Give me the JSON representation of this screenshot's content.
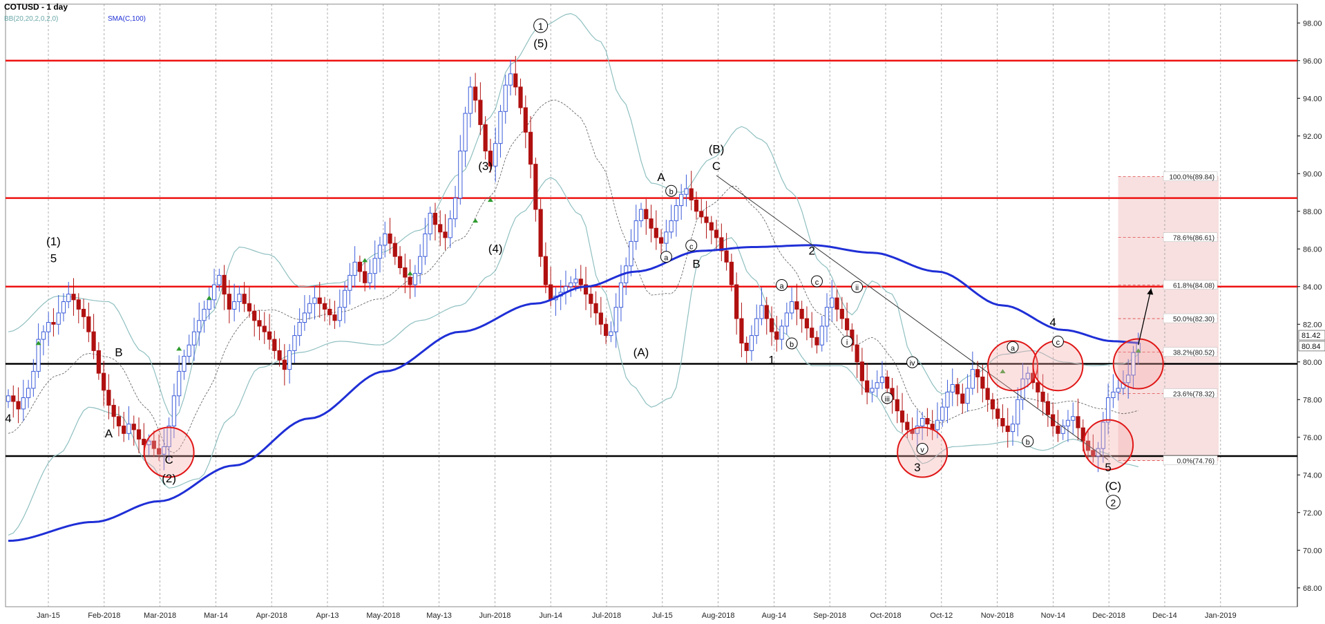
{
  "header": {
    "title": "COTUSD - 1 day",
    "bb_label": "BB(20,20,2,0,2,0)",
    "sma_label": "SMA(C,100)"
  },
  "colors": {
    "up_candle": "#3a5bd9",
    "down_candle": "#b01010",
    "sma": "#1f2fd6",
    "bollinger": "#8fbfc0",
    "bb_mid": "#555555",
    "resistance": "#ee1111",
    "support": "#000000",
    "fib_zone": "#f7dada",
    "circle": "#e01616",
    "arrow_green": "#2e9b2e"
  },
  "chart_data": {
    "type": "candlestick",
    "title": "COTUSD - 1 day",
    "ylim": [
      67,
      99
    ],
    "y_ticks": [
      "68.00",
      "70.00",
      "72.00",
      "74.00",
      "76.00",
      "78.00",
      "80.00",
      "82.00",
      "84.00",
      "86.00",
      "88.00",
      "90.00",
      "92.00",
      "94.00",
      "96.00",
      "98.00"
    ],
    "x_ticks": [
      "Jan-15",
      "Feb-2018",
      "Mar-2018",
      "Mar-14",
      "Apr-2018",
      "Apr-13",
      "May-2018",
      "May-13",
      "Jun-2018",
      "Jun-14",
      "Jul-2018",
      "Jul-15",
      "Aug-2018",
      "Aug-14",
      "Sep-2018",
      "Oct-2018",
      "Oct-12",
      "Nov-2018",
      "Nov-14",
      "Dec-2018",
      "Dec-14",
      "Jan-2019"
    ],
    "last_price_labels": [
      "81.42",
      "80.84"
    ],
    "horizontal_levels": {
      "resistance": [
        96.0,
        88.7,
        84.0
      ],
      "support": [
        79.9,
        75.0
      ]
    },
    "fibonacci": [
      {
        "label": "100.0%(89.84)",
        "value": 89.84
      },
      {
        "label": "78.6%(86.61)",
        "value": 86.61
      },
      {
        "label": "61.8%(84.08)",
        "value": 84.08
      },
      {
        "label": "50.0%(82.30)",
        "value": 82.3
      },
      {
        "label": "38.2%(80.52)",
        "value": 80.52
      },
      {
        "label": "23.6%(78.32)",
        "value": 78.32
      },
      {
        "label": "0.0%(74.76)",
        "value": 74.76
      }
    ],
    "close": [
      78.2,
      77.9,
      77.5,
      78.1,
      78.6,
      79.5,
      81.2,
      81.6,
      82.1,
      82.0,
      82.6,
      83.2,
      83.6,
      83.3,
      82.8,
      82.4,
      81.6,
      80.6,
      79.4,
      78.5,
      77.7,
      77.1,
      76.6,
      76.2,
      76.7,
      76.4,
      75.9,
      75.6,
      75.8,
      75.4,
      75.1,
      75.5,
      76.6,
      78.2,
      79.5,
      80.3,
      80.9,
      81.6,
      82.2,
      82.8,
      83.3,
      84.1,
      84.6,
      83.6,
      82.8,
      83.2,
      83.6,
      83.1,
      82.7,
      82.2,
      81.9,
      81.6,
      81.2,
      80.6,
      80.1,
      79.6,
      80.6,
      81.4,
      82.1,
      82.6,
      83.1,
      83.4,
      83.1,
      82.8,
      82.5,
      82.2,
      82.9,
      83.8,
      84.6,
      85.3,
      84.8,
      84.2,
      84.7,
      85.5,
      86.2,
      86.8,
      86.3,
      85.6,
      85.0,
      84.5,
      84.1,
      84.7,
      85.6,
      86.8,
      87.9,
      87.3,
      86.9,
      86.6,
      87.6,
      88.7,
      91.2,
      93.2,
      94.6,
      93.9,
      92.6,
      91.2,
      90.4,
      91.6,
      93.3,
      94.7,
      95.3,
      94.6,
      93.5,
      92.2,
      90.5,
      88.1,
      85.6,
      84.1,
      83.3,
      83.5,
      83.7,
      84.0,
      84.2,
      84.4,
      84.1,
      83.6,
      83.1,
      82.6,
      82.0,
      81.4,
      81.6,
      82.9,
      84.2,
      85.1,
      86.4,
      87.5,
      88.1,
      87.6,
      87.1,
      86.6,
      86.3,
      86.9,
      87.5,
      88.3,
      88.9,
      89.2,
      88.6,
      88.0,
      87.7,
      87.4,
      87.0,
      86.6,
      85.9,
      85.3,
      84.1,
      82.3,
      81.0,
      80.6,
      81.4,
      82.3,
      83.0,
      82.3,
      81.6,
      81.2,
      81.9,
      82.6,
      83.2,
      82.8,
      82.3,
      81.8,
      81.3,
      80.9,
      81.9,
      82.9,
      83.4,
      82.8,
      82.3,
      81.7,
      80.9,
      80.0,
      79.0,
      78.4,
      78.6,
      78.9,
      79.2,
      78.6,
      78.0,
      77.4,
      76.8,
      76.4,
      76.2,
      76.6,
      77.0,
      76.7,
      76.4,
      76.9,
      77.6,
      78.4,
      78.8,
      78.3,
      77.8,
      78.6,
      79.6,
      79.2,
      78.6,
      78.0,
      77.5,
      77.0,
      76.6,
      76.3,
      76.7,
      78.0,
      79.1,
      79.4,
      78.9,
      78.4,
      77.9,
      77.2,
      76.6,
      76.2,
      76.6,
      76.9,
      77.1,
      76.5,
      75.8,
      75.3,
      75.0,
      75.4,
      76.8,
      78.1,
      78.4,
      78.6,
      78.9,
      79.3,
      80.5,
      81.0
    ],
    "sma100_anchors": [
      [
        0,
        70.5
      ],
      [
        17,
        71.5
      ],
      [
        30,
        72.6
      ],
      [
        45,
        74.5
      ],
      [
        60,
        77.0
      ],
      [
        75,
        79.5
      ],
      [
        90,
        81.6
      ],
      [
        105,
        83.1
      ],
      [
        115,
        84.0
      ],
      [
        125,
        84.8
      ],
      [
        138,
        85.9
      ],
      [
        148,
        86.1
      ],
      [
        160,
        86.2
      ],
      [
        172,
        85.8
      ],
      [
        185,
        84.8
      ],
      [
        198,
        83.0
      ],
      [
        210,
        81.7
      ],
      [
        220,
        81.1
      ],
      [
        226,
        81.0
      ]
    ],
    "bb_upper_anchors": [
      [
        0,
        81.6
      ],
      [
        10,
        83.5
      ],
      [
        20,
        83.2
      ],
      [
        27,
        80.5
      ],
      [
        33,
        77.0
      ],
      [
        40,
        82.5
      ],
      [
        46,
        86.1
      ],
      [
        52,
        85.7
      ],
      [
        58,
        84.0
      ],
      [
        66,
        84.2
      ],
      [
        74,
        85.8
      ],
      [
        82,
        87.0
      ],
      [
        90,
        90.0
      ],
      [
        96,
        93.0
      ],
      [
        100,
        95.8
      ],
      [
        106,
        97.8
      ],
      [
        112,
        98.5
      ],
      [
        118,
        97.0
      ],
      [
        122,
        94.0
      ],
      [
        128,
        89.5
      ],
      [
        134,
        89.0
      ],
      [
        140,
        90.8
      ],
      [
        146,
        92.5
      ],
      [
        150,
        91.8
      ],
      [
        156,
        89.0
      ],
      [
        162,
        85.2
      ],
      [
        168,
        82.5
      ],
      [
        172,
        84.3
      ],
      [
        176,
        83.6
      ],
      [
        180,
        80.3
      ],
      [
        186,
        78.3
      ],
      [
        192,
        79.3
      ],
      [
        198,
        80.4
      ],
      [
        204,
        80.6
      ],
      [
        210,
        80.0
      ],
      [
        216,
        79.8
      ],
      [
        222,
        79.9
      ],
      [
        226,
        80.5
      ]
    ],
    "bb_lower_anchors": [
      [
        0,
        70.8
      ],
      [
        10,
        75.1
      ],
      [
        16,
        77.6
      ],
      [
        22,
        77.2
      ],
      [
        28,
        74.6
      ],
      [
        32,
        73.3
      ],
      [
        38,
        73.8
      ],
      [
        44,
        77.0
      ],
      [
        50,
        79.7
      ],
      [
        58,
        80.5
      ],
      [
        66,
        81.1
      ],
      [
        74,
        80.9
      ],
      [
        82,
        82.2
      ],
      [
        90,
        83.0
      ],
      [
        96,
        84.6
      ],
      [
        102,
        87.9
      ],
      [
        108,
        89.8
      ],
      [
        114,
        87.8
      ],
      [
        118,
        84.0
      ],
      [
        124,
        78.8
      ],
      [
        128,
        77.6
      ],
      [
        132,
        78.1
      ],
      [
        138,
        85.6
      ],
      [
        144,
        86.6
      ],
      [
        148,
        84.5
      ],
      [
        154,
        81.6
      ],
      [
        160,
        79.8
      ],
      [
        166,
        79.8
      ],
      [
        172,
        78.3
      ],
      [
        178,
        76.2
      ],
      [
        182,
        74.6
      ],
      [
        188,
        75.5
      ],
      [
        194,
        75.6
      ],
      [
        200,
        75.8
      ],
      [
        206,
        75.3
      ],
      [
        212,
        75.9
      ],
      [
        218,
        75.2
      ],
      [
        222,
        74.6
      ],
      [
        226,
        74.4
      ]
    ],
    "wave_labels": [
      {
        "text": "4",
        "i": 0,
        "y": 76.8
      },
      {
        "text": "(1)",
        "i": 9,
        "y": 86.2
      },
      {
        "text": "5",
        "i": 9,
        "y": 85.3
      },
      {
        "text": "B",
        "i": 22,
        "y": 80.3
      },
      {
        "text": "A",
        "i": 20,
        "y": 76.0
      },
      {
        "text": "C",
        "i": 32,
        "y": 74.6
      },
      {
        "text": "(2)",
        "i": 32,
        "y": 73.6
      },
      {
        "text": "(3)",
        "i": 95,
        "y": 90.2
      },
      {
        "text": "(4)",
        "i": 97,
        "y": 85.8
      },
      {
        "text": "(5)",
        "i": 106,
        "y": 96.7
      },
      {
        "text": "A",
        "i": 130,
        "y": 89.6
      },
      {
        "text": "B",
        "i": 137,
        "y": 85.0
      },
      {
        "text": "(A)",
        "i": 126,
        "y": 80.3
      },
      {
        "text": "(B)",
        "i": 141,
        "y": 91.1
      },
      {
        "text": "C",
        "i": 141,
        "y": 90.2
      },
      {
        "text": "1",
        "i": 152,
        "y": 79.9
      },
      {
        "text": "2",
        "i": 160,
        "y": 85.7
      },
      {
        "text": "3",
        "i": 181,
        "y": 74.2
      },
      {
        "text": "4",
        "i": 208,
        "y": 81.9
      },
      {
        "text": "5",
        "i": 219,
        "y": 74.2
      },
      {
        "text": "(C)",
        "i": 220,
        "y": 73.2
      }
    ],
    "circled_labels": [
      {
        "text": "1",
        "i": 106,
        "y": 97.6
      },
      {
        "text": "2",
        "i": 220,
        "y": 72.3
      },
      {
        "text": "a",
        "i": 131,
        "y": 85.4
      },
      {
        "text": "b",
        "i": 132,
        "y": 88.9
      },
      {
        "text": "c",
        "i": 136,
        "y": 86.0
      },
      {
        "text": "a",
        "i": 154,
        "y": 83.9
      },
      {
        "text": "b",
        "i": 156,
        "y": 80.8
      },
      {
        "text": "c",
        "i": 161,
        "y": 84.1
      },
      {
        "text": "i",
        "i": 167,
        "y": 80.9
      },
      {
        "text": "ii",
        "i": 169,
        "y": 83.8
      },
      {
        "text": "iii",
        "i": 175,
        "y": 77.9
      },
      {
        "text": "iv",
        "i": 180,
        "y": 79.8
      },
      {
        "text": "v",
        "i": 182,
        "y": 75.2
      },
      {
        "text": "a",
        "i": 200,
        "y": 80.6
      },
      {
        "text": "b",
        "i": 203,
        "y": 75.6
      },
      {
        "text": "c",
        "i": 209,
        "y": 80.9
      }
    ],
    "highlight_circles": [
      {
        "i": 32,
        "y": 75.2
      },
      {
        "i": 182,
        "y": 75.2
      },
      {
        "i": 200,
        "y": 79.8
      },
      {
        "i": 209,
        "y": 79.8
      },
      {
        "i": 219,
        "y": 75.6
      },
      {
        "i": 225,
        "y": 79.9
      }
    ],
    "trend_line": {
      "from": [
        141,
        89.9
      ],
      "to": [
        219,
        74.8
      ]
    },
    "projection_arrow": {
      "from": [
        225,
        80.9
      ],
      "to": [
        227,
        83.9
      ]
    },
    "green_signals": [
      [
        6,
        80.9
      ],
      [
        34,
        80.6
      ],
      [
        40,
        83.3
      ],
      [
        71,
        85.3
      ],
      [
        80,
        84.6
      ],
      [
        93,
        87.4
      ],
      [
        96,
        88.5
      ],
      [
        198,
        79.4
      ],
      [
        225,
        80.5
      ]
    ]
  }
}
